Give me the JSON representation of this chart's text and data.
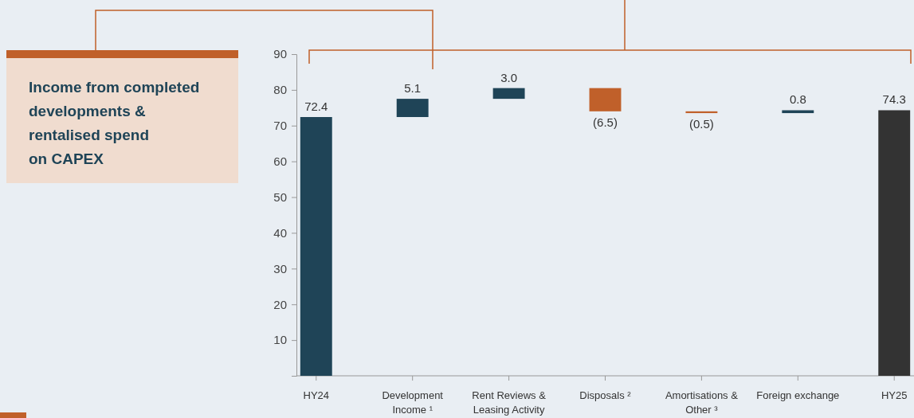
{
  "chart_data": {
    "type": "bar",
    "categories": [
      "HY24",
      "Development Income ¹",
      "Rent Reviews & Leasing Activity",
      "Disposals ²",
      "Amortisations & Other ³",
      "Foreign exchange",
      "HY25"
    ],
    "values": [
      72.4,
      5.1,
      3.0,
      -6.5,
      -0.5,
      0.8,
      74.3
    ],
    "base": [
      0,
      72.4,
      77.5,
      80.5,
      74.0,
      73.5,
      0
    ],
    "colors": [
      "#1f4457",
      "#1f4457",
      "#1f4457",
      "#c0602a",
      "#c0602a",
      "#1f4457",
      "#333333"
    ],
    "value_labels": [
      "72.4",
      "5.1",
      "3.0",
      "(6.5)",
      "(0.5)",
      "0.8",
      "74.3"
    ],
    "ylim": [
      0,
      90
    ],
    "yticks": [
      10,
      20,
      30,
      40,
      50,
      60,
      70,
      80,
      90
    ],
    "grid": false,
    "annotations": [
      "Income from completed\ndevelopments &\nrentalised spend\non CAPEX"
    ]
  }
}
